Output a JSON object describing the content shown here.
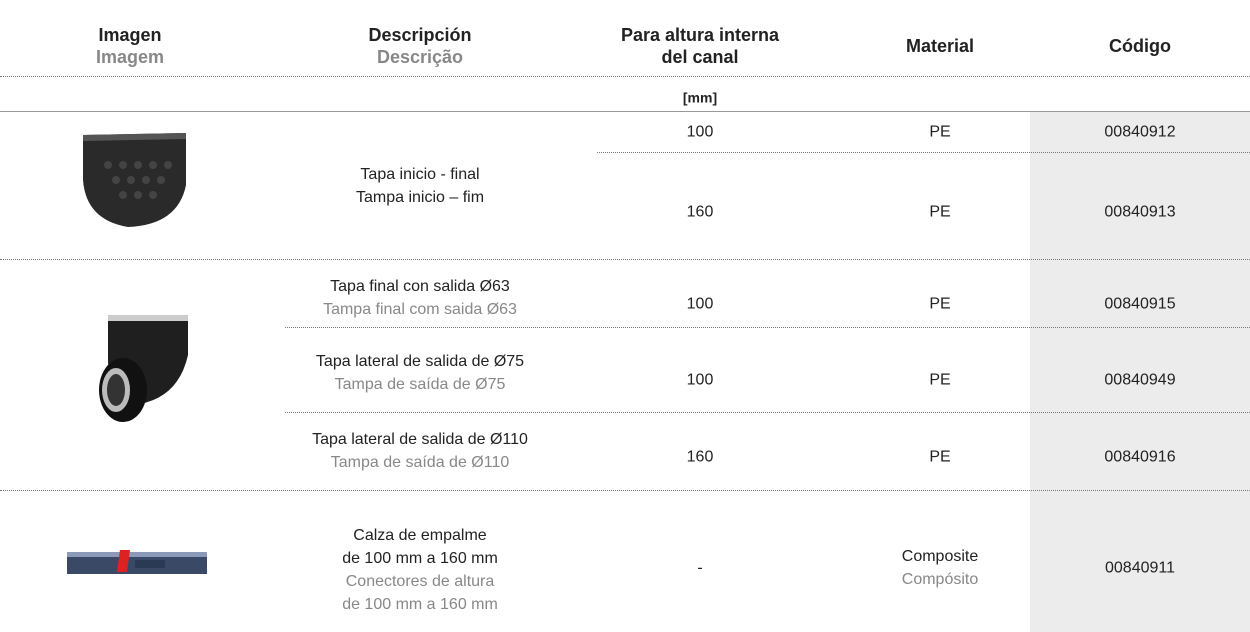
{
  "header": {
    "columns": [
      {
        "es": "Imagen",
        "pt": "Imagem"
      },
      {
        "es": "Descripción",
        "pt": "Descrição"
      },
      {
        "es": "Para altura interna del canal"
      },
      {
        "es": "Material"
      },
      {
        "es": "Código"
      }
    ],
    "unit": "[mm]"
  },
  "groups": [
    {
      "description": {
        "es": "Tapa inicio - final",
        "pt": "Tampa inicio – fim"
      },
      "rows": [
        {
          "height": "100",
          "material": "PE",
          "code": "00840912"
        },
        {
          "height": "160",
          "material": "PE",
          "code": "00840913"
        }
      ]
    },
    {
      "rows": [
        {
          "description": {
            "es": "Tapa final con salida Ø63",
            "pt": "Tampa final com saida Ø63"
          },
          "height": "100",
          "material": "PE",
          "code": "00840915"
        },
        {
          "description": {
            "es": "Tapa lateral de salida de Ø75",
            "pt": "Tampa de saída de Ø75"
          },
          "height": "100",
          "material": "PE",
          "code": "00840949"
        },
        {
          "description": {
            "es": "Tapa lateral de salida de Ø110",
            "pt": "Tampa de saída de Ø110"
          },
          "height": "160",
          "material": "PE",
          "code": "00840916"
        }
      ]
    },
    {
      "description": {
        "es": [
          "Calza de empalme",
          "de 100 mm a 160 mm"
        ],
        "pt": [
          "Conectores de altura",
          "de 100 mm a 160 mm"
        ]
      },
      "rows": [
        {
          "height": "-",
          "material": {
            "es": "Composite",
            "pt": "Compósito"
          },
          "code": "00840911"
        }
      ]
    }
  ]
}
